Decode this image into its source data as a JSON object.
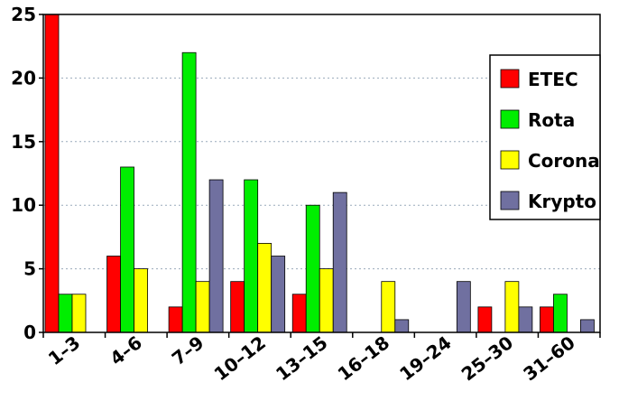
{
  "chart_data": {
    "type": "bar",
    "title": "",
    "xlabel": "",
    "ylabel": "",
    "categories": [
      "1–3",
      "4–6",
      "7–9",
      "10–12",
      "13–15",
      "16–18",
      "19–24",
      "25–30",
      "31–60"
    ],
    "ylim": [
      0,
      25
    ],
    "yticks": [
      "0",
      "5",
      "10",
      "15",
      "20",
      "25"
    ],
    "grid": "horizontal dotted",
    "legend_position": "right",
    "series": [
      {
        "name": "ETEC",
        "color": "#ff0000",
        "values": [
          25,
          6,
          2,
          4,
          3,
          0,
          0,
          2,
          2
        ]
      },
      {
        "name": "Rota",
        "color": "#00ee00",
        "values": [
          3,
          13,
          22,
          12,
          10,
          0,
          0,
          0,
          3
        ]
      },
      {
        "name": "Corona",
        "color": "#ffff00",
        "values": [
          3,
          5,
          4,
          7,
          5,
          4,
          0,
          4,
          0
        ]
      },
      {
        "name": "Krypto",
        "color": "#7070a0",
        "values": [
          0,
          0,
          12,
          6,
          11,
          1,
          4,
          2,
          1
        ]
      }
    ]
  }
}
